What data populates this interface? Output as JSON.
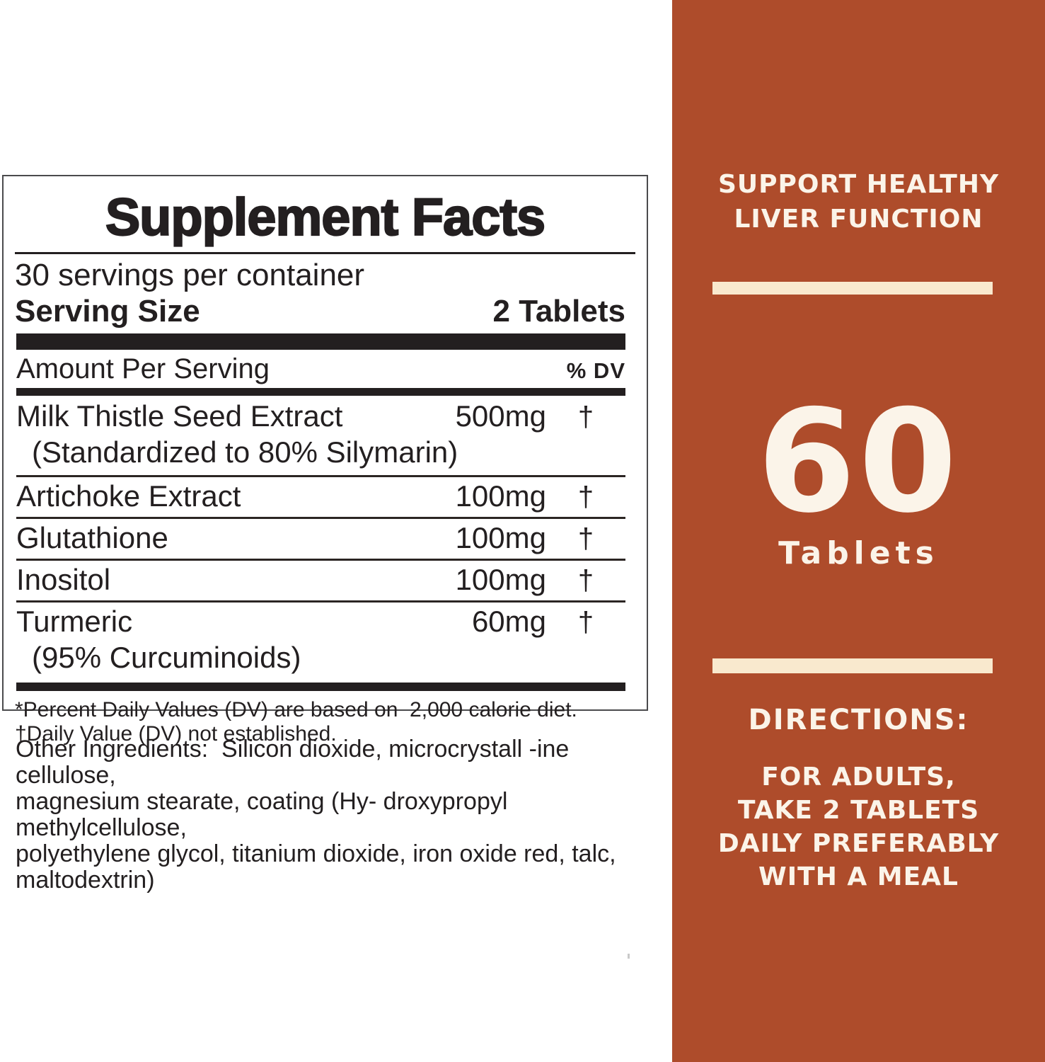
{
  "supplement_facts": {
    "title": "Supplement Facts",
    "servings_per_container": "30 servings per container",
    "serving_size_label": "Serving Size",
    "serving_size_value": "2 Tablets",
    "amount_header": "Amount Per Serving",
    "dv_header": "% DV",
    "rows": [
      {
        "name": "Milk Thistle Seed Extract",
        "amount": "500mg",
        "dv": "†",
        "note": "(Standardized to 80% Silymarin)"
      },
      {
        "name": "Artichoke Extract",
        "amount": "100mg",
        "dv": "†"
      },
      {
        "name": "Glutathione",
        "amount": "100mg",
        "dv": "†"
      },
      {
        "name": "Inositol",
        "amount": "100mg",
        "dv": "†"
      },
      {
        "name": "Turmeric",
        "amount": "60mg",
        "dv": "†",
        "note": "(95% Curcuminoids)"
      }
    ],
    "footnotes": "*Percent Daily Values (DV) are based on  2,000 calorie diet.\n†Daily Value (DV) not established.",
    "other_ingredients": "Other Ingredients:  Silicon dioxide, microcrystall -ine cellulose,\nmagnesium stearate, coating (Hy- droxypropyl methylcellulose,\npolyethylene glycol, titanium dioxide, iron oxide red, talc,\nmaltodextrin)"
  },
  "side_panel": {
    "headline_line1": "SUPPORT HEALTHY",
    "headline_line2": "LIVER FUNCTION",
    "count_number": "60",
    "count_unit": "Tablets",
    "directions_title": "DIRECTIONS:",
    "directions_line1": "FOR ADULTS,",
    "directions_line2": "TAKE 2 TABLETS",
    "directions_line3": "DAILY PREFERABLY",
    "directions_line4": "WITH A MEAL",
    "colors": {
      "background": "#AE4C2B",
      "bar": "#F9E9CE",
      "text": "#FBF4E9"
    }
  }
}
